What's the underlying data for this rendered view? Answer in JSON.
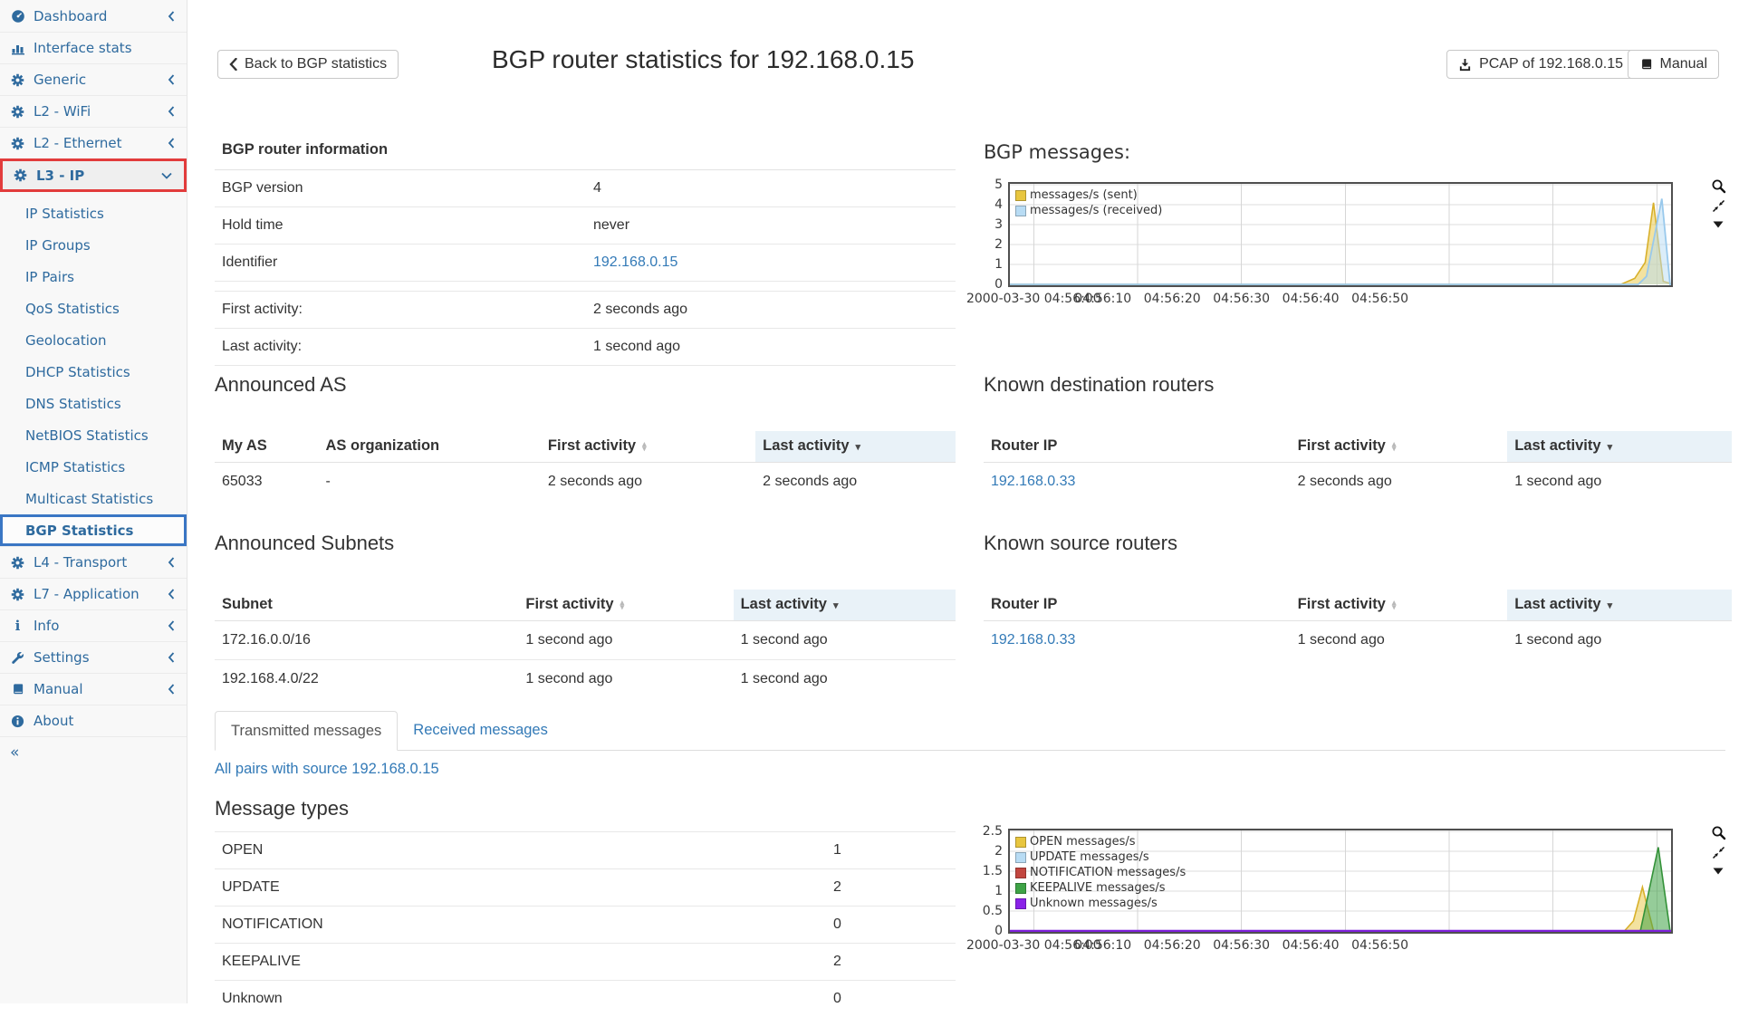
{
  "sidebar": {
    "collapse_label": "«",
    "items": [
      {
        "label": "Dashboard",
        "icon": "dashboard-icon",
        "chevron": "left",
        "type": "top"
      },
      {
        "label": "Interface stats",
        "icon": "bar-chart-icon",
        "chevron": "",
        "type": "top"
      },
      {
        "label": "Generic",
        "icon": "gear-icon",
        "chevron": "left",
        "type": "top"
      },
      {
        "label": "L2 - WiFi",
        "icon": "gear-icon",
        "chevron": "left",
        "type": "top"
      },
      {
        "label": "L2 - Ethernet",
        "icon": "gear-icon",
        "chevron": "left",
        "type": "top"
      },
      {
        "label": "L3 - IP",
        "icon": "gear-icon",
        "chevron": "down",
        "type": "top",
        "highlight": "red"
      },
      {
        "label": "IP Statistics",
        "type": "sub"
      },
      {
        "label": "IP Groups",
        "type": "sub"
      },
      {
        "label": "IP Pairs",
        "type": "sub"
      },
      {
        "label": "QoS Statistics",
        "type": "sub"
      },
      {
        "label": "Geolocation",
        "type": "sub"
      },
      {
        "label": "DHCP Statistics",
        "type": "sub"
      },
      {
        "label": "DNS Statistics",
        "type": "sub"
      },
      {
        "label": "NetBIOS Statistics",
        "type": "sub"
      },
      {
        "label": "ICMP Statistics",
        "type": "sub"
      },
      {
        "label": "Multicast Statistics",
        "type": "sub"
      },
      {
        "label": "BGP Statistics",
        "type": "sub",
        "highlight": "blue"
      },
      {
        "label": "L4 - Transport",
        "icon": "gear-icon",
        "chevron": "left",
        "type": "top"
      },
      {
        "label": "L7 - Application",
        "icon": "gear-icon",
        "chevron": "left",
        "type": "top"
      },
      {
        "label": "Info",
        "icon": "info-icon",
        "chevron": "left",
        "type": "top"
      },
      {
        "label": "Settings",
        "icon": "wrench-icon",
        "chevron": "left",
        "type": "top"
      },
      {
        "label": "Manual",
        "icon": "book-icon",
        "chevron": "left",
        "type": "top"
      },
      {
        "label": "About",
        "icon": "info-circle-icon",
        "chevron": "",
        "type": "top"
      }
    ]
  },
  "header": {
    "back_button": "Back to BGP statistics",
    "title": "BGP router statistics for 192.168.0.15",
    "pcap_button": "PCAP of 192.168.0.15",
    "manual_button": "Manual"
  },
  "router_info": {
    "heading": "BGP router information",
    "rows": [
      {
        "label": "BGP version",
        "value": "4",
        "link": false
      },
      {
        "label": "Hold time",
        "value": "never",
        "link": false
      },
      {
        "label": "Identifier",
        "value": "192.168.0.15",
        "link": true
      }
    ],
    "activity_rows": [
      {
        "label": "First activity:",
        "value": "2 seconds ago"
      },
      {
        "label": "Last activity:",
        "value": "1 second ago"
      }
    ]
  },
  "tables": {
    "announced_as": {
      "heading": "Announced AS",
      "columns": [
        {
          "label": "My AS",
          "width": "14%",
          "sort": "none"
        },
        {
          "label": "AS organization",
          "width": "30%",
          "sort": "none"
        },
        {
          "label": "First activity",
          "width": "29%",
          "sort": "both"
        },
        {
          "label": "Last activity",
          "width": "27%",
          "sort": "desc",
          "active": true
        }
      ],
      "rows": [
        [
          {
            "text": "65033"
          },
          {
            "text": "-"
          },
          {
            "text": "2 seconds ago"
          },
          {
            "text": "2 seconds ago"
          }
        ]
      ]
    },
    "known_destination_routers": {
      "heading": "Known destination routers",
      "columns": [
        {
          "label": "Router IP",
          "width": "41%",
          "sort": "none"
        },
        {
          "label": "First activity",
          "width": "29%",
          "sort": "both"
        },
        {
          "label": "Last activity",
          "width": "30%",
          "sort": "desc",
          "active": true
        }
      ],
      "rows": [
        [
          {
            "text": "192.168.0.33",
            "link": true
          },
          {
            "text": "2 seconds ago"
          },
          {
            "text": "1 second ago"
          }
        ]
      ]
    },
    "announced_subnets": {
      "heading": "Announced Subnets",
      "columns": [
        {
          "label": "Subnet",
          "width": "41%",
          "sort": "none"
        },
        {
          "label": "First activity",
          "width": "29%",
          "sort": "both"
        },
        {
          "label": "Last activity",
          "width": "30%",
          "sort": "desc",
          "active": true
        }
      ],
      "rows": [
        [
          {
            "text": "172.16.0.0/16"
          },
          {
            "text": "1 second ago"
          },
          {
            "text": "1 second ago"
          }
        ],
        [
          {
            "text": "192.168.4.0/22"
          },
          {
            "text": "1 second ago"
          },
          {
            "text": "1 second ago"
          }
        ]
      ]
    },
    "known_source_routers": {
      "heading": "Known source routers",
      "columns": [
        {
          "label": "Router IP",
          "width": "41%",
          "sort": "none"
        },
        {
          "label": "First activity",
          "width": "29%",
          "sort": "both"
        },
        {
          "label": "Last activity",
          "width": "30%",
          "sort": "desc",
          "active": true
        }
      ],
      "rows": [
        [
          {
            "text": "192.168.0.33",
            "link": true
          },
          {
            "text": "1 second ago"
          },
          {
            "text": "1 second ago"
          }
        ]
      ]
    }
  },
  "tabs": [
    {
      "label": "Transmitted messages",
      "active": true
    },
    {
      "label": "Received messages",
      "active": false
    }
  ],
  "pairs_link": "All pairs with source 192.168.0.15",
  "message_types": {
    "heading": "Message types",
    "rows": [
      {
        "label": "OPEN",
        "value": "1"
      },
      {
        "label": "UPDATE",
        "value": "2"
      },
      {
        "label": "NOTIFICATION",
        "value": "0"
      },
      {
        "label": "KEEPALIVE",
        "value": "2"
      },
      {
        "label": "Unknown",
        "value": "0"
      }
    ]
  },
  "chart_data": [
    {
      "type": "area",
      "title": "BGP messages:",
      "x_tick_labels": [
        "2000-03-30 04:56:00",
        "04:56:10",
        "04:56:20",
        "04:56:30",
        "04:56:40",
        "04:56:50"
      ],
      "x_tick_seconds": [
        3.7,
        13.7,
        23.7,
        33.7,
        43.7,
        53.7
      ],
      "grid_seconds": [
        3.7,
        18.7,
        33.7,
        48.7,
        63.7,
        78.7,
        93.7
      ],
      "x_max_seconds": 96,
      "ylim": [
        0,
        5
      ],
      "y_ticks": [
        0,
        1,
        2,
        3,
        4,
        5
      ],
      "grid": true,
      "legend_position": "top-left",
      "series": [
        {
          "name": "messages/s (sent)",
          "color": "#e8c63f",
          "stroke": "#d8b02a",
          "line_width": 1.6,
          "fill_opacity": 0.5,
          "points": [
            [
              0,
              0
            ],
            [
              88.5,
              0
            ],
            [
              90.5,
              0.3
            ],
            [
              92,
              1.1
            ],
            [
              93.2,
              4.1
            ],
            [
              94.6,
              0.15
            ],
            [
              96,
              0
            ]
          ]
        },
        {
          "name": "messages/s (received)",
          "color": "#b8dcf4",
          "stroke": "#99c9ec",
          "line_width": 1.8,
          "fill_opacity": 0.5,
          "points": [
            [
              0,
              0
            ],
            [
              91,
              0
            ],
            [
              92.2,
              0.4
            ],
            [
              94.4,
              4.3
            ],
            [
              95.6,
              0
            ],
            [
              96,
              0
            ]
          ]
        }
      ]
    },
    {
      "type": "area",
      "title": "",
      "x_tick_labels": [
        "2000-03-30 04:56:00",
        "04:56:10",
        "04:56:20",
        "04:56:30",
        "04:56:40",
        "04:56:50"
      ],
      "x_tick_seconds": [
        3.7,
        13.7,
        23.7,
        33.7,
        43.7,
        53.7
      ],
      "grid_seconds": [
        3.7,
        18.7,
        33.7,
        48.7,
        63.7,
        78.7,
        93.7
      ],
      "x_max_seconds": 96,
      "ylim": [
        0,
        2.5
      ],
      "y_ticks": [
        0,
        0.5,
        1,
        1.5,
        2,
        2.5
      ],
      "grid": true,
      "legend_position": "top-left",
      "series": [
        {
          "name": "OPEN messages/s",
          "color": "#e8c63f",
          "stroke": "#d8b02a",
          "line_width": 1.6,
          "fill_opacity": 0.5,
          "points": [
            [
              0,
              0
            ],
            [
              89,
              0
            ],
            [
              90.3,
              0.25
            ],
            [
              91.6,
              1.1
            ],
            [
              93.2,
              0
            ],
            [
              96,
              0
            ]
          ]
        },
        {
          "name": "UPDATE messages/s",
          "color": "#b8dcf4",
          "stroke": "#99c9ec",
          "line_width": 1.6,
          "fill_opacity": 0.5,
          "points": [
            [
              0,
              0
            ],
            [
              96,
              0
            ]
          ]
        },
        {
          "name": "NOTIFICATION messages/s",
          "color": "#c2463f",
          "stroke": "#b13c36",
          "line_width": 1.6,
          "fill_opacity": 0.5,
          "points": [
            [
              0,
              0
            ],
            [
              96,
              0
            ]
          ]
        },
        {
          "name": "KEEPALIVE messages/s",
          "color": "#3ea346",
          "stroke": "#349239",
          "line_width": 1.6,
          "fill_opacity": 0.55,
          "points": [
            [
              0,
              0
            ],
            [
              91.3,
              0
            ],
            [
              93.9,
              2.1
            ],
            [
              95.6,
              0
            ],
            [
              96,
              0
            ]
          ]
        },
        {
          "name": "Unknown messages/s",
          "color": "#8a22e8",
          "stroke": "#7d1fd9",
          "line_width": 2.4,
          "fill_opacity": 0.5,
          "points": [
            [
              0,
              0
            ],
            [
              96,
              0
            ]
          ]
        }
      ]
    }
  ],
  "colors": {
    "accent_link": "#337ab7",
    "sidebar_text": "#2e6a9e",
    "highlight_red": "#e23c3c",
    "highlight_blue": "#3a76c4",
    "sorted_header_bg": "#e9f2f8"
  }
}
